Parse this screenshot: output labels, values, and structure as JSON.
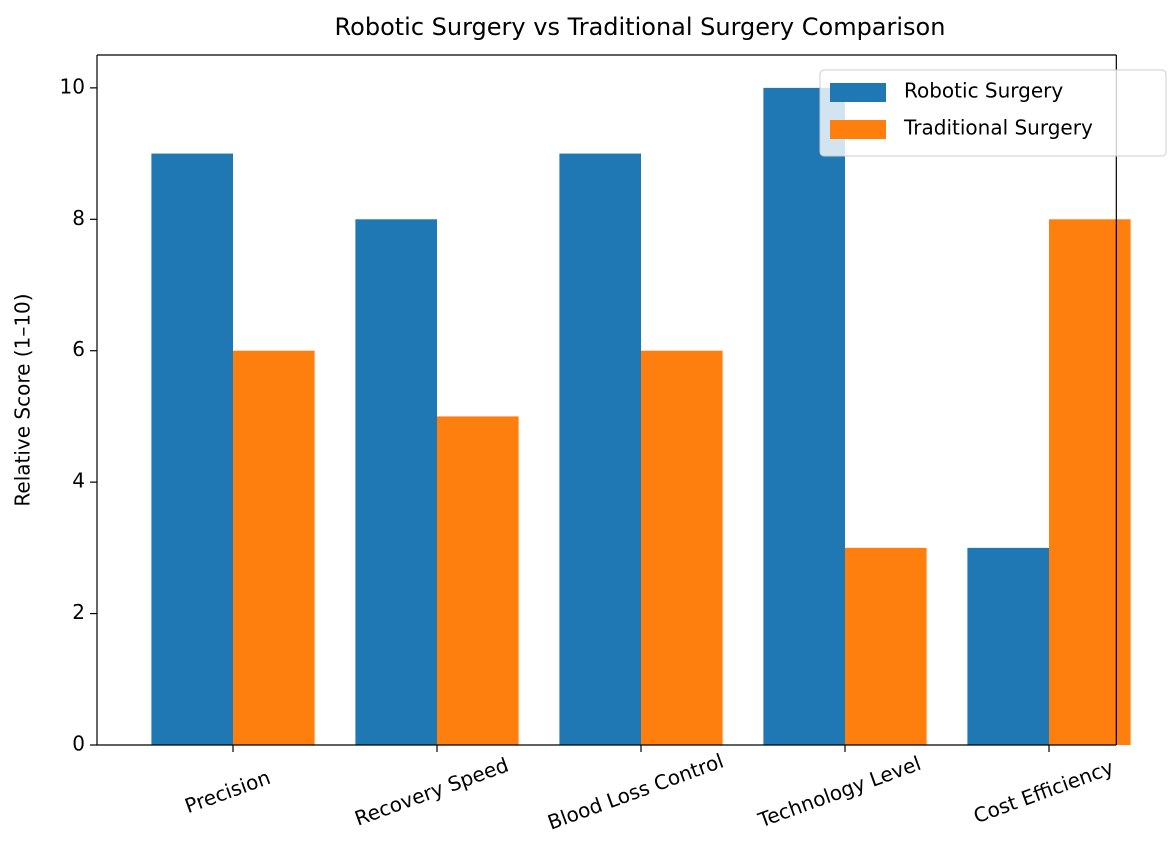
{
  "chart_data": {
    "type": "bar",
    "title": "Robotic Surgery vs Traditional Surgery Comparison",
    "y_label": "Relative Score (1–10)",
    "categories": [
      "Precision",
      "Recovery Speed",
      "Blood Loss Control",
      "Technology Level",
      "Cost Efficiency"
    ],
    "series": [
      {
        "name": "Robotic Surgery",
        "color": "#1f77b4",
        "values": [
          9,
          8,
          9,
          10,
          3
        ]
      },
      {
        "name": "Traditional Surgery",
        "color": "#ff7f0e",
        "values": [
          6,
          5,
          6,
          3,
          8
        ]
      }
    ],
    "ylim": [
      0,
      10.5
    ],
    "yticks": [
      0,
      2,
      4,
      6,
      8,
      10
    ],
    "legend": "upper right"
  }
}
